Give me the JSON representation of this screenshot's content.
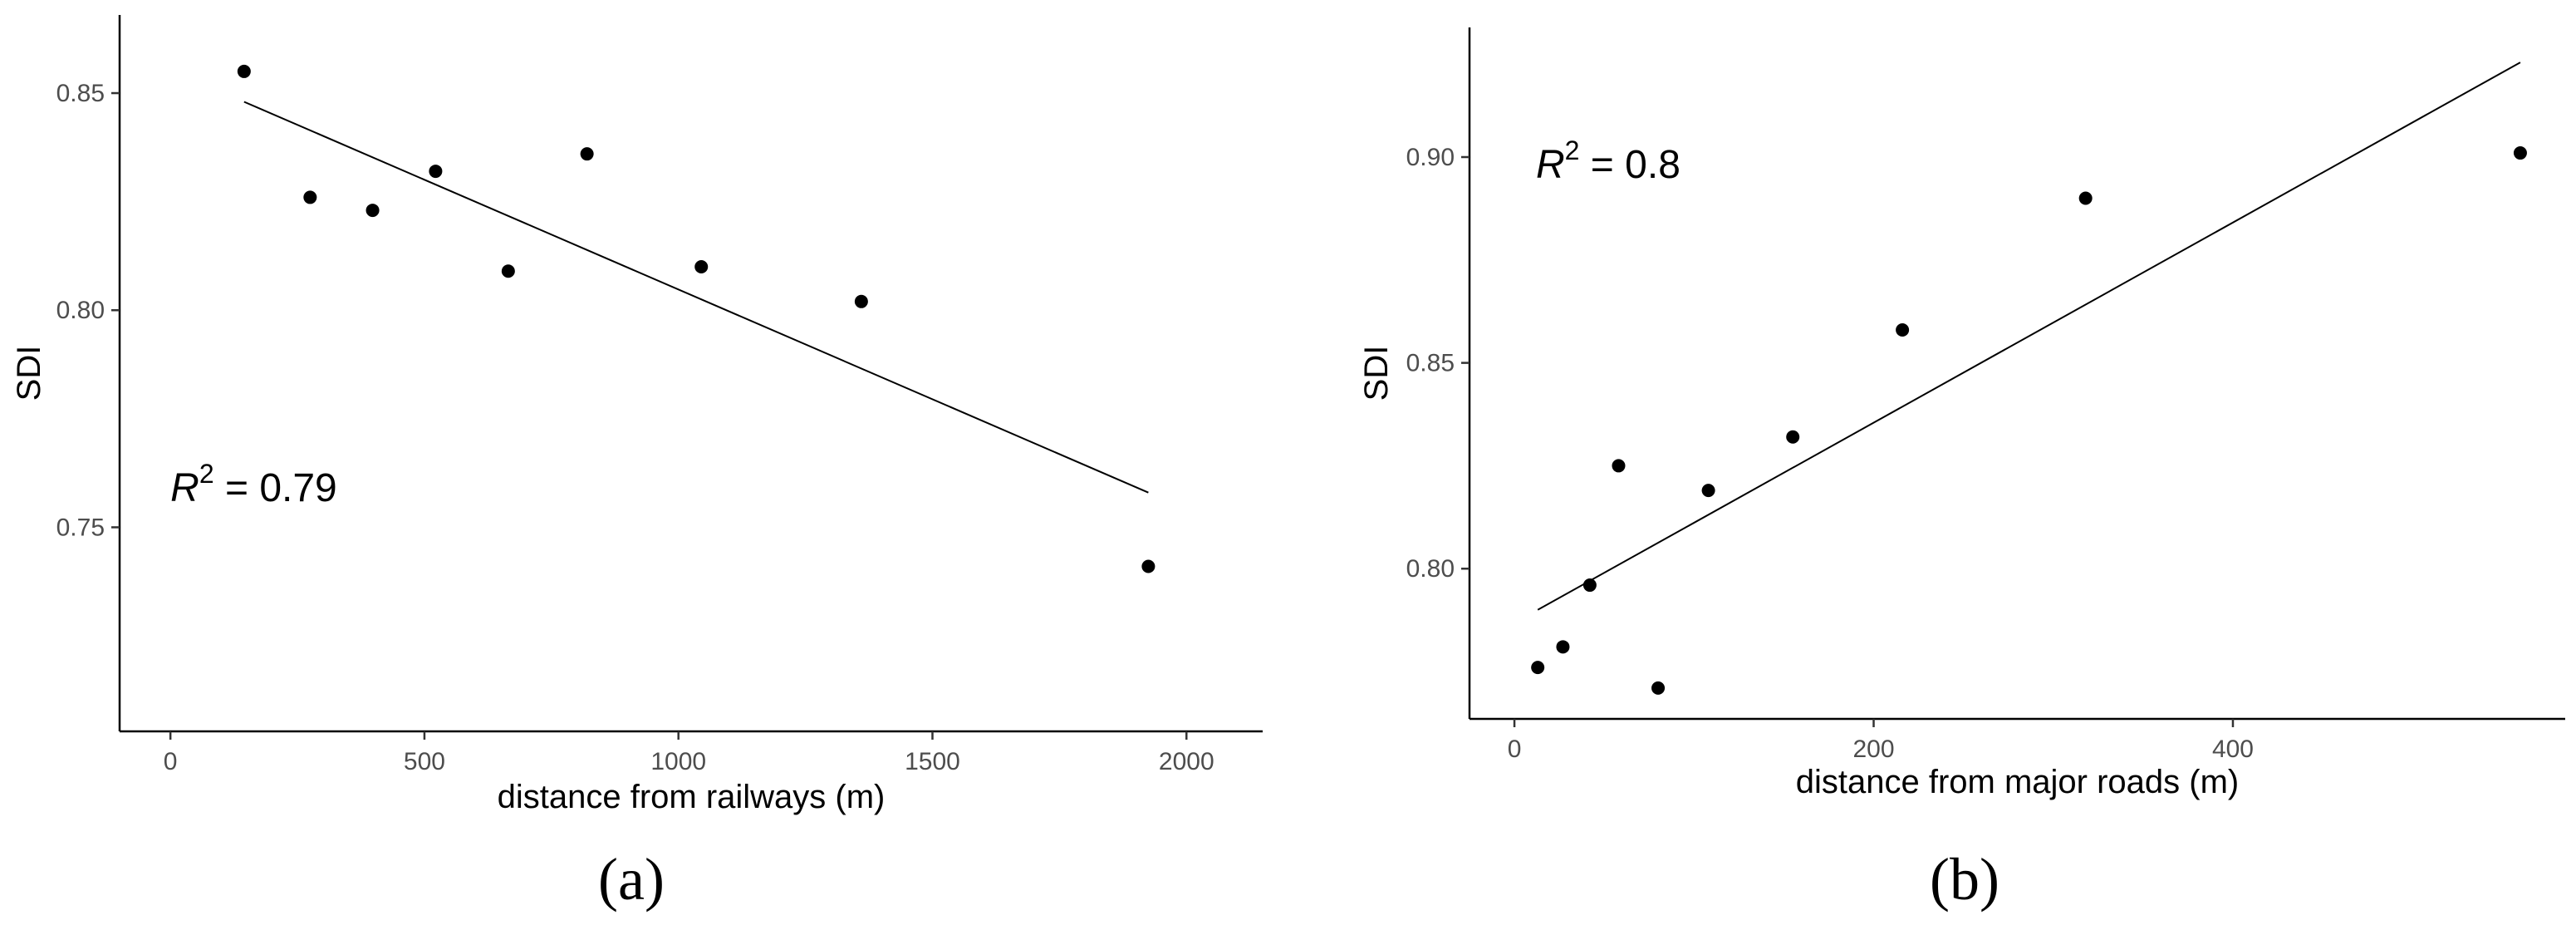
{
  "chart_data": [
    {
      "type": "scatter",
      "panel_label": "(a)",
      "xlabel": "distance from railways (m)",
      "ylabel": "SDI",
      "xlim": [
        -100,
        2150
      ],
      "ylim": [
        0.703,
        0.868
      ],
      "xticks": [
        0,
        500,
        1000,
        1500,
        2000
      ],
      "xtick_labels": [
        "0",
        "500",
        "1000",
        "1500",
        "2000"
      ],
      "yticks": [
        0.75,
        0.8,
        0.85
      ],
      "ytick_labels": [
        "0.75",
        "0.80",
        "0.85"
      ],
      "points": [
        {
          "x": 145,
          "y": 0.855
        },
        {
          "x": 275,
          "y": 0.826
        },
        {
          "x": 398,
          "y": 0.823
        },
        {
          "x": 522,
          "y": 0.832
        },
        {
          "x": 665,
          "y": 0.809
        },
        {
          "x": 820,
          "y": 0.836
        },
        {
          "x": 1045,
          "y": 0.81
        },
        {
          "x": 1360,
          "y": 0.802
        },
        {
          "x": 1925,
          "y": 0.741
        }
      ],
      "fit_line": {
        "x": [
          145,
          1925
        ],
        "y": [
          0.848,
          0.758
        ]
      },
      "annotation": {
        "r_symbol": "R",
        "superscript": "2",
        "text": " = 0.79"
      },
      "grid": false
    },
    {
      "type": "scatter",
      "panel_label": "(b)",
      "xlabel": "distance from major roads (m)",
      "ylabel": "SDI",
      "xlim": [
        -25,
        585
      ],
      "ylim": [
        0.7635,
        0.9315
      ],
      "xticks": [
        0,
        200,
        400
      ],
      "xtick_labels": [
        "0",
        "200",
        "400"
      ],
      "yticks": [
        0.8,
        0.85,
        0.9
      ],
      "ytick_labels": [
        "0.80",
        "0.85",
        "0.90"
      ],
      "points": [
        {
          "x": 13,
          "y": 0.776
        },
        {
          "x": 27,
          "y": 0.781
        },
        {
          "x": 42,
          "y": 0.796
        },
        {
          "x": 58,
          "y": 0.825
        },
        {
          "x": 80,
          "y": 0.771
        },
        {
          "x": 108,
          "y": 0.819
        },
        {
          "x": 155,
          "y": 0.832
        },
        {
          "x": 216,
          "y": 0.858
        },
        {
          "x": 318,
          "y": 0.89
        },
        {
          "x": 560,
          "y": 0.901
        }
      ],
      "fit_line": {
        "x": [
          13,
          560
        ],
        "y": [
          0.79,
          0.923
        ]
      },
      "annotation": {
        "r_symbol": "R",
        "superscript": "2",
        "text": " = 0.8"
      },
      "grid": false
    }
  ]
}
